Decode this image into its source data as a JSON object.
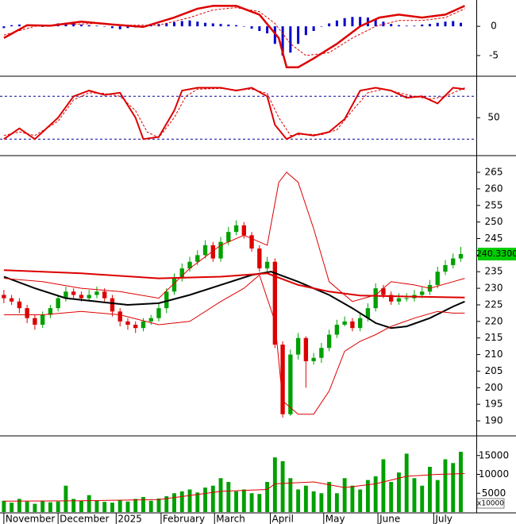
{
  "chart_data": [
    {
      "type": "combo",
      "xlim": [
        -0.5,
        61
      ],
      "ylim": [
        -8.4,
        4.5
      ],
      "yticks": [
        -5,
        0
      ],
      "bar_color": "#0000cc",
      "x": [
        0,
        1,
        2,
        3,
        4,
        5,
        6,
        7,
        8,
        9,
        10,
        11,
        12,
        13,
        14,
        15,
        16,
        17,
        18,
        19,
        20,
        21,
        22,
        23,
        24,
        25,
        26,
        27,
        28,
        29,
        30,
        31,
        32,
        33,
        34,
        35,
        36,
        37,
        38,
        39,
        40,
        41,
        42,
        43,
        44,
        45,
        46,
        47,
        48,
        49,
        50,
        51,
        52,
        53,
        54,
        55,
        56,
        57,
        58,
        59
      ],
      "values": [
        -0.3,
        0.2,
        0.3,
        0.2,
        0.1,
        -0.1,
        0.2,
        0.5,
        0.6,
        0.5,
        0.3,
        0.2,
        0.1,
        0,
        -0.3,
        -0.5,
        -0.3,
        -0.2,
        0,
        0.2,
        0.4,
        0.5,
        0.7,
        0.9,
        1,
        0.8,
        0.6,
        0.5,
        0.4,
        0.3,
        0.2,
        0,
        -0.4,
        -0.8,
        -1.2,
        -3,
        -5,
        -4.5,
        -3,
        -1.5,
        -0.8,
        0,
        0.5,
        1,
        1.4,
        1.6,
        1.6,
        1.5,
        1.2,
        0.8,
        0.4,
        0.2,
        0.1,
        0.1,
        0.3,
        0.4,
        0.6,
        0.8,
        0.9,
        0.6
      ],
      "series": [
        {
          "color": "#dd0000",
          "width": 2.5,
          "x": [
            0,
            3,
            6,
            10,
            14,
            18,
            22,
            25,
            27,
            30,
            33,
            35.5,
            36.5,
            38,
            40,
            43,
            46,
            48.5,
            51,
            54,
            57,
            59.5
          ],
          "values": [
            -2,
            0.2,
            0.1,
            0.8,
            0.3,
            -0.1,
            1.5,
            3,
            3.5,
            3.5,
            2,
            -2,
            -7,
            -7,
            -5.5,
            -3,
            0,
            1.5,
            2,
            1.5,
            2,
            3.5
          ]
        },
        {
          "color": "#dd0000",
          "width": 1,
          "dash": true,
          "x": [
            0,
            4,
            8,
            12,
            16,
            20,
            24,
            27,
            30,
            33,
            35,
            37,
            39,
            42,
            45,
            48,
            51,
            54,
            57,
            59.5
          ],
          "values": [
            -1.5,
            0,
            0.3,
            0.5,
            0.2,
            0.2,
            1.5,
            2.8,
            3.2,
            2.5,
            0.5,
            -3,
            -5,
            -4.5,
            -2,
            0,
            1,
            1,
            1.5,
            3
          ]
        }
      ]
    },
    {
      "type": "line",
      "xlim": [
        -0.5,
        61
      ],
      "ylim": [
        -2,
        107
      ],
      "yticks": [
        50
      ],
      "ref_lines": [
        20,
        80
      ],
      "ref_color": "#000099",
      "series": [
        {
          "color": "#dd0000",
          "width": 2,
          "x": [
            0,
            2,
            4,
            7,
            9,
            11,
            13,
            15,
            17,
            18,
            20,
            22,
            23,
            25,
            28,
            30,
            32,
            34,
            35,
            36.5,
            38,
            40,
            42,
            44,
            46,
            48,
            50,
            52,
            54,
            56,
            58,
            59.5
          ],
          "values": [
            20,
            35,
            20,
            50,
            80,
            88,
            82,
            85,
            50,
            20,
            23,
            60,
            88,
            92,
            92,
            88,
            92,
            80,
            40,
            20,
            28,
            25,
            30,
            48,
            88,
            92,
            88,
            78,
            80,
            70,
            92,
            90
          ]
        },
        {
          "color": "#dd0000",
          "width": 1,
          "dash": true,
          "x": [
            0,
            2,
            4,
            7,
            9,
            11,
            13,
            15,
            17,
            18.5,
            20,
            22,
            23.5,
            25,
            28,
            30,
            32,
            34,
            35.5,
            37,
            39,
            41,
            43,
            45,
            47,
            49,
            51,
            53,
            55,
            57,
            59.5
          ],
          "values": [
            25,
            30,
            25,
            45,
            75,
            85,
            84,
            80,
            60,
            30,
            22,
            50,
            80,
            90,
            91,
            89,
            90,
            84,
            50,
            25,
            27,
            26,
            33,
            60,
            85,
            90,
            85,
            80,
            76,
            80,
            92
          ]
        }
      ]
    },
    {
      "type": "candlestick",
      "xlim": [
        -0.5,
        61
      ],
      "ylim": [
        185.7,
        269.8
      ],
      "yticks": [
        190,
        195,
        200,
        205,
        210,
        215,
        220,
        225,
        230,
        235,
        240,
        245,
        250,
        255,
        260,
        265
      ],
      "up_color": "#00a000",
      "down_color": "#dd0000",
      "price_tag": {
        "value": 240.33,
        "label": "240.3300"
      },
      "price_tag_color": "#00cc00",
      "x": [
        0,
        1,
        2,
        3,
        4,
        5,
        6,
        7,
        8,
        9,
        10,
        11,
        12,
        13,
        14,
        15,
        16,
        17,
        18,
        19,
        20,
        21,
        22,
        23,
        24,
        25,
        26,
        27,
        28,
        29,
        30,
        31,
        32,
        33,
        34,
        35,
        36,
        37,
        38,
        39,
        40,
        41,
        42,
        43,
        44,
        45,
        46,
        47,
        48,
        49,
        50,
        51,
        52,
        53,
        54,
        55,
        56,
        57,
        58,
        59
      ],
      "open": [
        228,
        227,
        226,
        224,
        221,
        219,
        222,
        224,
        227,
        229,
        228,
        227,
        228,
        229,
        227,
        223,
        220,
        219,
        218,
        220,
        221,
        224,
        229,
        233,
        236,
        238,
        240,
        243,
        239,
        244,
        247,
        249,
        246,
        242,
        236,
        238,
        213,
        192,
        210,
        215,
        208,
        209,
        212,
        216,
        219,
        220,
        218,
        221,
        224,
        230,
        228,
        226,
        227,
        227,
        228,
        229,
        231,
        235,
        237,
        239
      ],
      "high": [
        229.5,
        228,
        227,
        225,
        222,
        223,
        225,
        228,
        230.5,
        230,
        229,
        229.5,
        230.5,
        230,
        228,
        224,
        221,
        220,
        221,
        222,
        225.5,
        230,
        234.5,
        237.5,
        239.5,
        241.5,
        244.5,
        244,
        245.5,
        248.5,
        250.5,
        250,
        247,
        243,
        239.5,
        239,
        214,
        211.5,
        216.5,
        215.5,
        210.5,
        213.5,
        217.5,
        220.5,
        221.5,
        221,
        222.5,
        225.5,
        231.5,
        231,
        229,
        228.5,
        228.5,
        229.5,
        230.5,
        232.5,
        236.5,
        238.5,
        240.5,
        242.5
      ],
      "low": [
        225.5,
        225,
        222.5,
        219.5,
        217.5,
        218,
        221,
        223,
        226,
        227,
        226,
        226,
        227,
        226,
        221.5,
        218.5,
        217.5,
        216.5,
        217,
        219,
        220,
        222.5,
        228,
        232,
        235,
        237,
        239,
        238,
        238,
        243,
        246,
        245,
        241,
        235,
        235,
        212,
        191,
        191.5,
        208.5,
        200,
        207,
        207.5,
        211,
        215,
        218.5,
        217,
        217,
        220,
        223,
        227,
        225,
        225,
        226,
        226,
        227,
        228,
        230,
        234,
        236,
        238
      ],
      "close": [
        227,
        226,
        224,
        221,
        219,
        222,
        224,
        227,
        229,
        228,
        227,
        228,
        229,
        227,
        223,
        220,
        219,
        218,
        220,
        221,
        224,
        229,
        233,
        236,
        238,
        240,
        243,
        239,
        244,
        247,
        249,
        246,
        242,
        236,
        238,
        213,
        192,
        210,
        215,
        208,
        209,
        212,
        216,
        219,
        220,
        218,
        221,
        224,
        230,
        228,
        226,
        227,
        227,
        228,
        229,
        231,
        235,
        237,
        239,
        240.33
      ],
      "series": [
        {
          "color": "#000000",
          "width": 2,
          "x": [
            0,
            4,
            8,
            12,
            16,
            20,
            24,
            28,
            32,
            34.5,
            38,
            42,
            45,
            48,
            50,
            52,
            55,
            58,
            59.5
          ],
          "values": [
            233.5,
            230,
            227,
            226,
            225,
            225.5,
            228,
            231,
            234,
            235,
            232,
            228,
            224,
            219.5,
            218,
            218.5,
            221,
            224.5,
            226
          ]
        },
        {
          "color": "#dd0000",
          "width": 2,
          "x": [
            0,
            10,
            20,
            28,
            34,
            38,
            42,
            46,
            52,
            59.5
          ],
          "values": [
            235.5,
            234.5,
            233,
            233.5,
            234.5,
            231,
            229,
            227.8,
            227.5,
            227.2
          ]
        },
        {
          "color": "#dd0000",
          "width": 1,
          "x": [
            0,
            5,
            10,
            15,
            20,
            24,
            28,
            31,
            34,
            35.5,
            36.5,
            38,
            40,
            42,
            45,
            48,
            50,
            53,
            55,
            58,
            59.5
          ],
          "values": [
            233,
            232,
            230,
            229,
            227,
            236,
            243,
            246,
            243,
            262,
            265,
            262,
            248,
            232,
            226,
            228,
            232,
            231,
            230,
            232,
            233
          ]
        },
        {
          "color": "#dd0000",
          "width": 1,
          "x": [
            0,
            5,
            10,
            15,
            20,
            24,
            28,
            31,
            33,
            35,
            36,
            38,
            40,
            42,
            44,
            46,
            48,
            50,
            53,
            56,
            58,
            59.5
          ],
          "values": [
            222,
            222,
            223,
            222,
            219,
            220,
            226,
            230,
            234,
            220,
            196,
            192,
            192,
            199,
            211,
            214,
            216,
            218.5,
            221,
            223,
            222.5,
            222.5
          ]
        }
      ]
    },
    {
      "type": "bar",
      "xlim": [
        -0.5,
        61
      ],
      "ylim": [
        0,
        20000
      ],
      "yticks": [
        5000,
        10000,
        15000
      ],
      "bar_color": "#00a000",
      "unit_label": "x10000",
      "x": [
        0,
        1,
        2,
        3,
        4,
        5,
        6,
        7,
        8,
        9,
        10,
        11,
        12,
        13,
        14,
        15,
        16,
        17,
        18,
        19,
        20,
        21,
        22,
        23,
        24,
        25,
        26,
        27,
        28,
        29,
        30,
        31,
        32,
        33,
        34,
        35,
        36,
        37,
        38,
        39,
        40,
        41,
        42,
        43,
        44,
        45,
        46,
        47,
        48,
        49,
        50,
        51,
        52,
        53,
        54,
        55,
        56,
        57,
        58,
        59
      ],
      "values": [
        3000,
        2500,
        3500,
        2800,
        2200,
        3000,
        2600,
        2800,
        7000,
        3500,
        3000,
        4500,
        3000,
        2700,
        2500,
        3200,
        2800,
        3500,
        4000,
        3000,
        3600,
        4200,
        5000,
        5500,
        6000,
        5200,
        6500,
        7000,
        9000,
        8000,
        5500,
        6000,
        5000,
        4800,
        8000,
        14500,
        13500,
        9000,
        6000,
        7000,
        5500,
        5000,
        8000,
        5000,
        9000,
        7000,
        6000,
        8500,
        9500,
        14000,
        8000,
        10500,
        15500,
        9000,
        7000,
        12000,
        8500,
        14000,
        13000,
        16000
      ],
      "series": [
        {
          "color": "#dd0000",
          "width": 1,
          "x": [
            0,
            10,
            20,
            28,
            34,
            35,
            40,
            44,
            48,
            52,
            56,
            59.5
          ],
          "values": [
            2900,
            3000,
            3300,
            5500,
            6000,
            7500,
            8000,
            6500,
            7500,
            9500,
            10000,
            10200
          ]
        }
      ],
      "xticks": [
        {
          "value": 0,
          "label": "November"
        },
        {
          "value": 7,
          "label": "December"
        },
        {
          "value": 14.5,
          "label": "2025"
        },
        {
          "value": 20.3,
          "label": "February"
        },
        {
          "value": 27.2,
          "label": "March"
        },
        {
          "value": 34.4,
          "label": "April"
        },
        {
          "value": 41.3,
          "label": "May"
        },
        {
          "value": 48.3,
          "label": "June"
        },
        {
          "value": 55.5,
          "label": "July"
        }
      ]
    }
  ]
}
